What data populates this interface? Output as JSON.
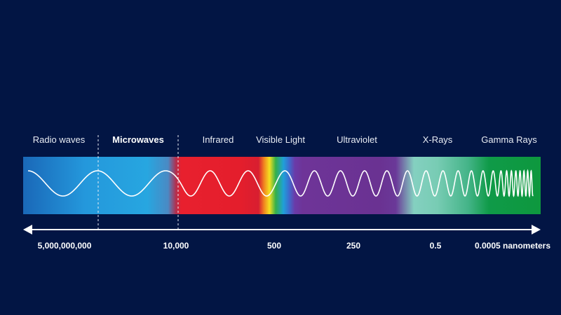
{
  "bands": [
    {
      "label": "Radio waves",
      "bold": false
    },
    {
      "label": "Microwaves",
      "bold": true
    },
    {
      "label": "Infrared",
      "bold": false
    },
    {
      "label": "Visible Light",
      "bold": false
    },
    {
      "label": "Ultraviolet",
      "bold": false
    },
    {
      "label": "X-Rays",
      "bold": false
    },
    {
      "label": "Gamma Rays",
      "bold": false
    }
  ],
  "wavelengths": [
    "5,000,000,000",
    "10,000",
    "500",
    "250",
    "0.5",
    "0.0005 nanometers"
  ],
  "colors": {
    "background": "#021544",
    "wave": "#ffffff",
    "arrow": "#ffffff"
  }
}
